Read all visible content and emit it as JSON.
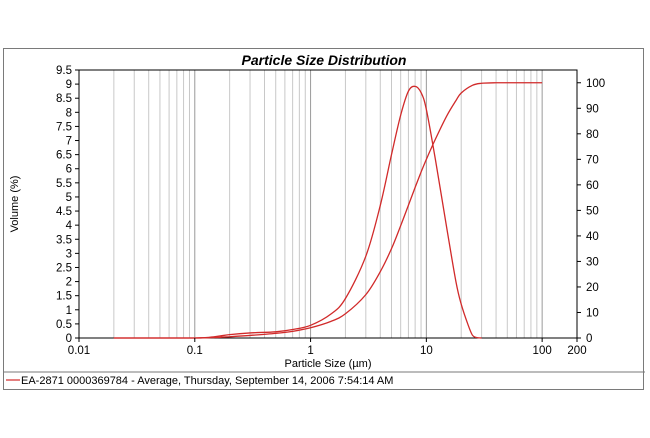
{
  "chart_data": {
    "type": "line",
    "title": "Particle Size Distribution",
    "xlabel": "Particle Size (µm)",
    "ylabel": "Volume (%)",
    "x_scale": "log",
    "xlim": [
      0.01,
      200
    ],
    "ylim": [
      0,
      9.5
    ],
    "y2lim": [
      0,
      105
    ],
    "x_ticks": [
      "0.01",
      "0.1",
      "1",
      "10",
      "100",
      "200"
    ],
    "y_ticks": [
      "0",
      "0.5",
      "1",
      "1.5",
      "2",
      "2.5",
      "3",
      "3.5",
      "4",
      "4.5",
      "5",
      "5.5",
      "6",
      "6.5",
      "7",
      "7.5",
      "8",
      "8.5",
      "9",
      "9.5"
    ],
    "y2_ticks": [
      "0",
      "10",
      "20",
      "30",
      "40",
      "50",
      "60",
      "70",
      "80",
      "90",
      "100"
    ],
    "grid": true,
    "line_color": "#d12a2a",
    "legend_placement": "bottom",
    "legend_entry": "EA-2871 0000369784 - Average, Thursday, September 14, 2006 7:54:14 AM",
    "series": [
      {
        "axis": "left",
        "x": [
          0.02,
          0.1,
          0.15,
          0.2,
          0.3,
          0.5,
          0.7,
          1,
          1.5,
          2,
          3,
          4,
          5,
          6,
          7,
          8,
          9,
          10,
          12,
          15,
          18,
          20,
          23,
          25,
          27,
          30
        ],
        "values": [
          0,
          0,
          0.05,
          0.12,
          0.18,
          0.22,
          0.3,
          0.45,
          0.85,
          1.4,
          2.9,
          4.7,
          6.5,
          7.9,
          8.75,
          8.92,
          8.7,
          8.1,
          6.3,
          3.9,
          2.0,
          1.2,
          0.45,
          0.1,
          0.02,
          0
        ]
      },
      {
        "axis": "right",
        "x": [
          0.02,
          0.1,
          0.15,
          0.2,
          0.3,
          0.5,
          0.7,
          1,
          1.5,
          2,
          3,
          4,
          5,
          6,
          7,
          8,
          9,
          10,
          12,
          15,
          18,
          20,
          25,
          30,
          40,
          60,
          100
        ],
        "values": [
          0,
          0,
          0.2,
          0.5,
          1,
          1.8,
          2.6,
          4,
          6.5,
          9.5,
          17,
          26,
          35,
          44,
          52,
          59,
          65,
          70,
          78,
          87,
          93,
          96,
          99,
          99.8,
          100,
          100,
          100
        ]
      }
    ]
  }
}
